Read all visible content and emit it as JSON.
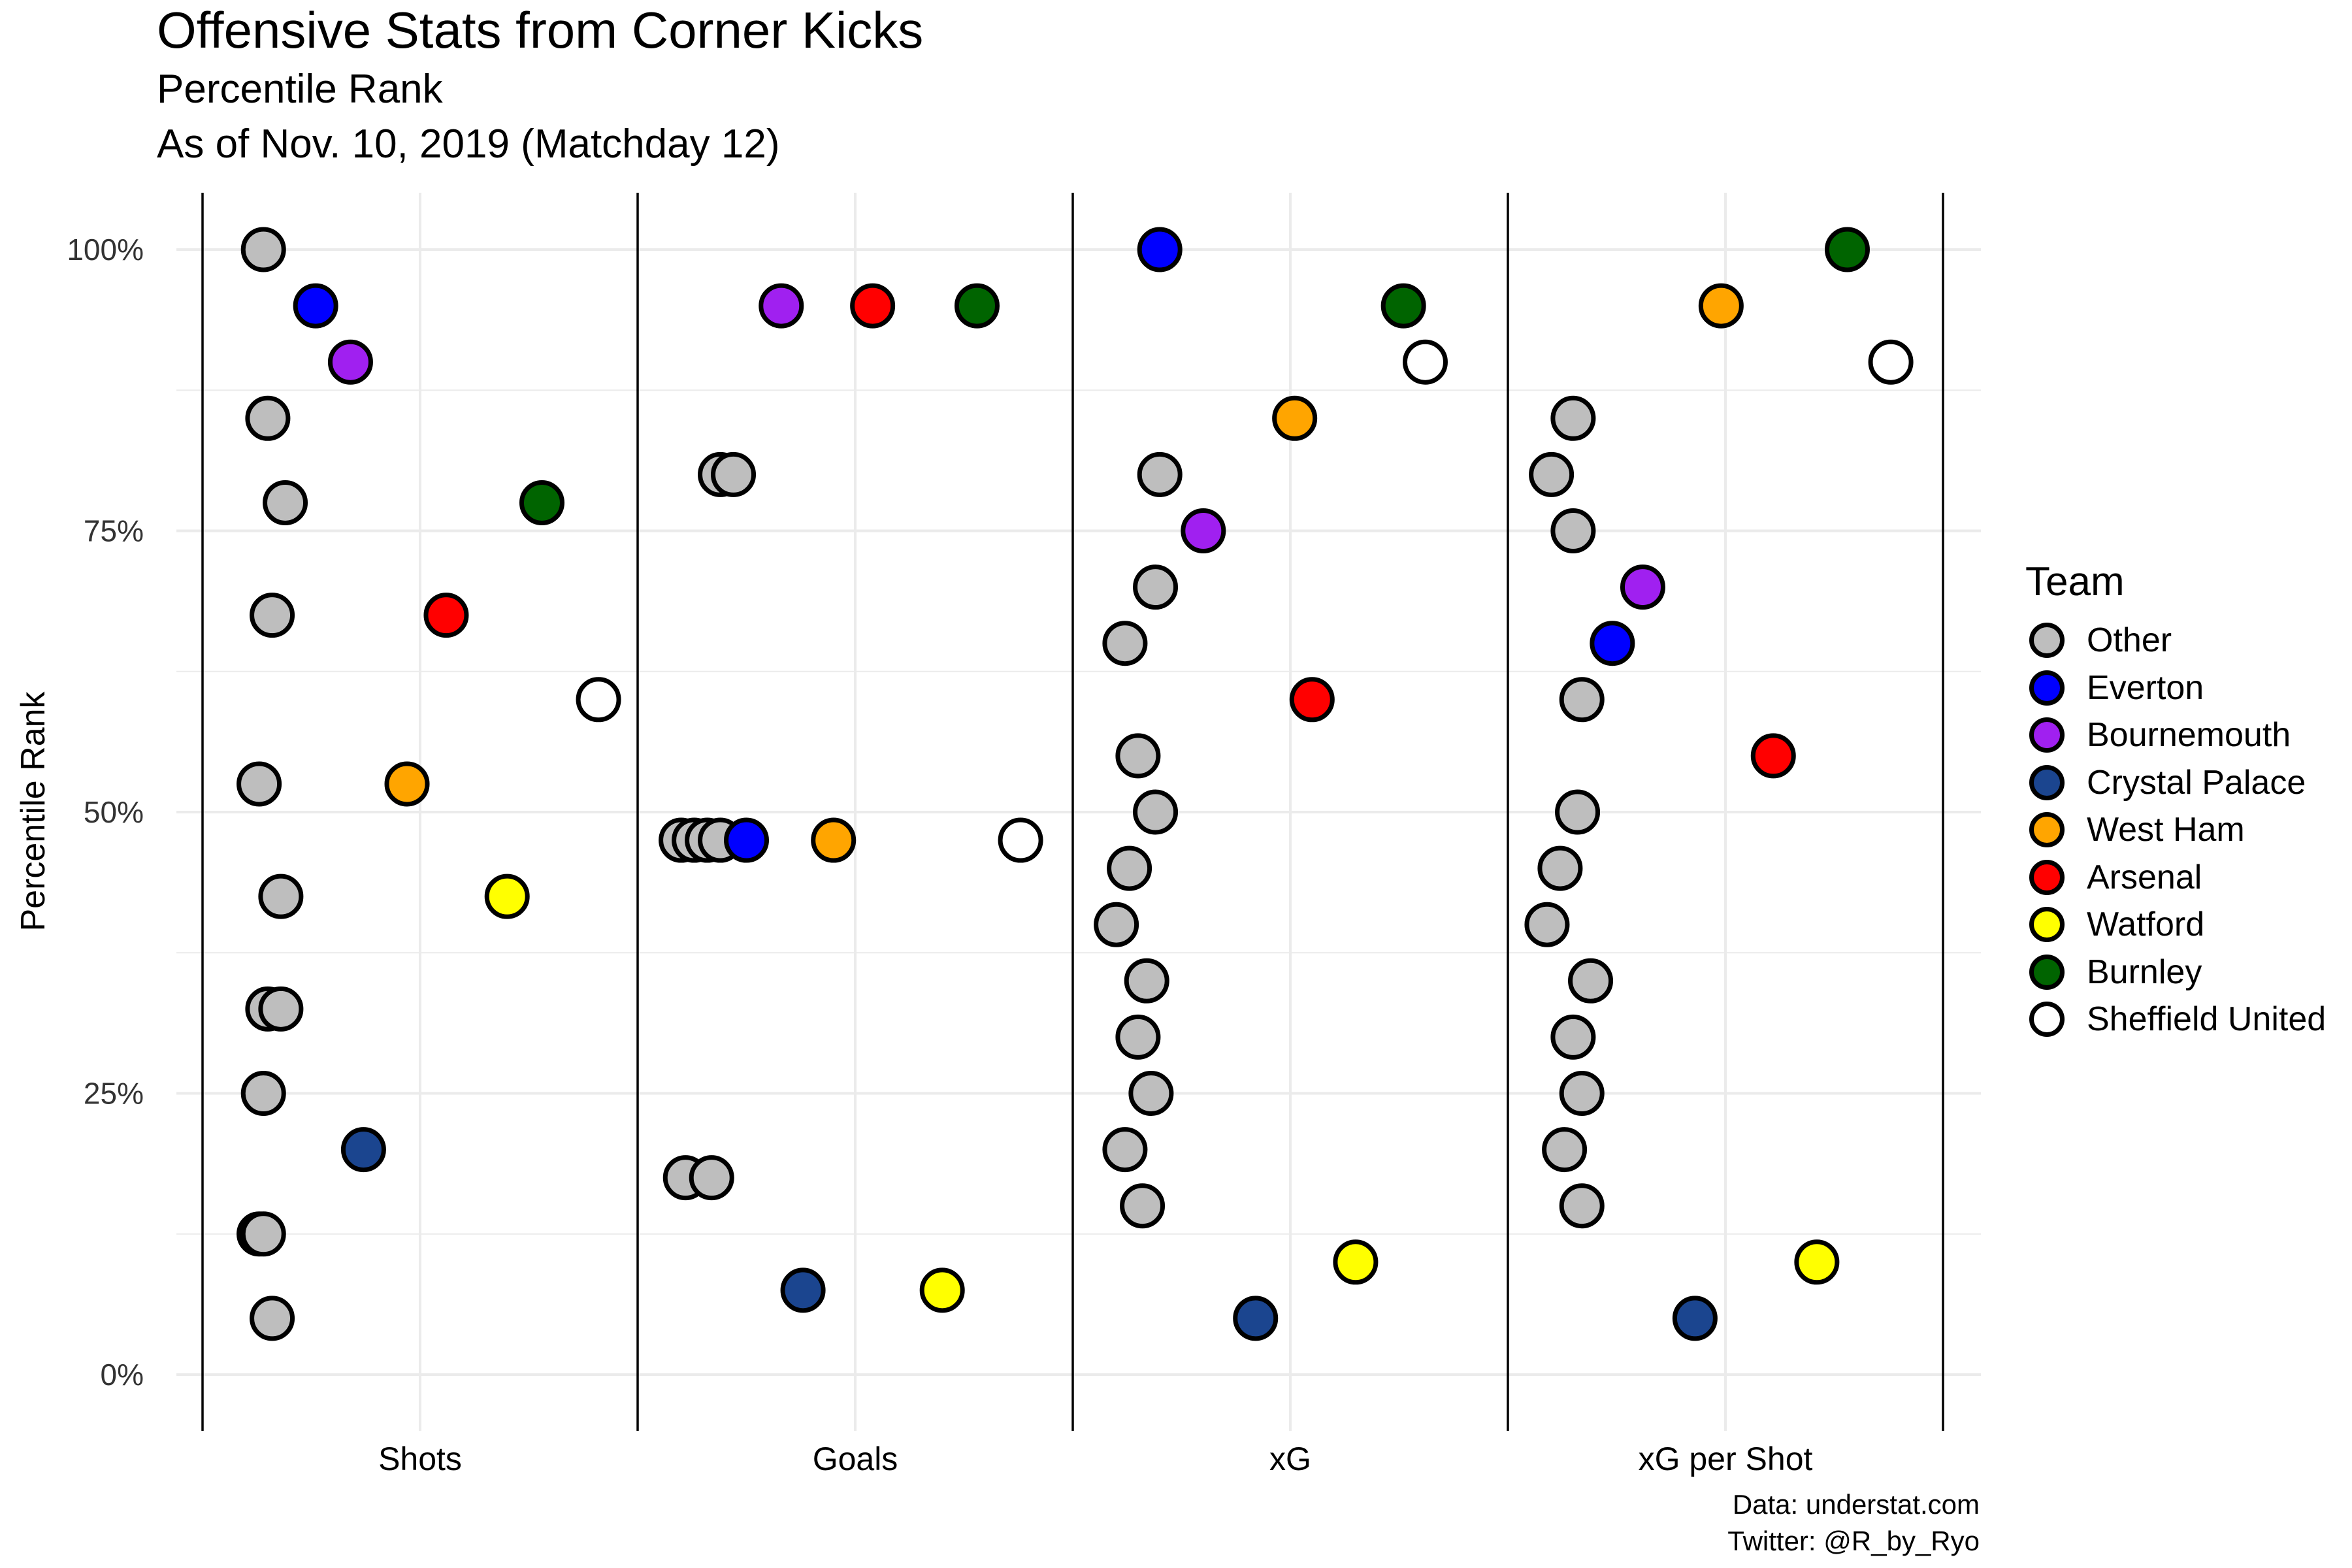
{
  "title": "Offensive Stats from Corner Kicks",
  "subtitle": "Percentile Rank",
  "subtitle2": "As of Nov. 10, 2019 (Matchday 12)",
  "caption_line1": "Data: understat.com",
  "caption_line2": "Twitter: @R_by_Ryo",
  "legend": {
    "title": "Team",
    "items": [
      {
        "label": "Other",
        "color": "#bebebe"
      },
      {
        "label": "Everton",
        "color": "#0000ff"
      },
      {
        "label": "Bournemouth",
        "color": "#a020f0"
      },
      {
        "label": "Crystal Palace",
        "color": "#1b458f"
      },
      {
        "label": "West Ham",
        "color": "#ffa500"
      },
      {
        "label": "Arsenal",
        "color": "#ff0000"
      },
      {
        "label": "Watford",
        "color": "#ffff00"
      },
      {
        "label": "Burnley",
        "color": "#006400"
      },
      {
        "label": "Sheffield United",
        "color": "#ffffff"
      }
    ]
  },
  "chart_data": {
    "type": "scatter",
    "ylabel": "Percentile Rank",
    "xlabel": "",
    "ylim": [
      0,
      100
    ],
    "yticks": [
      "0%",
      "25%",
      "50%",
      "75%",
      "100%"
    ],
    "yticks_values": [
      0,
      25,
      50,
      75,
      100
    ],
    "categories": [
      "Shots",
      "Goals",
      "xG",
      "xG per Shot"
    ],
    "grid": true,
    "legend_position": "right",
    "series": [
      {
        "name": "Other",
        "color": "#bebebe",
        "points": [
          {
            "panel": "Shots",
            "offset": -0.36,
            "y": 100
          },
          {
            "panel": "Shots",
            "offset": -0.35,
            "y": 85
          },
          {
            "panel": "Shots",
            "offset": -0.31,
            "y": 77.5
          },
          {
            "panel": "Shots",
            "offset": -0.34,
            "y": 67.5
          },
          {
            "panel": "Shots",
            "offset": -0.37,
            "y": 52.5
          },
          {
            "panel": "Shots",
            "offset": -0.32,
            "y": 42.5
          },
          {
            "panel": "Shots",
            "offset": -0.35,
            "y": 32.5
          },
          {
            "panel": "Shots",
            "offset": -0.32,
            "y": 32.5
          },
          {
            "panel": "Shots",
            "offset": -0.36,
            "y": 25
          },
          {
            "panel": "Shots",
            "offset": -0.37,
            "y": 12.5
          },
          {
            "panel": "Shots",
            "offset": -0.36,
            "y": 12.5
          },
          {
            "panel": "Shots",
            "offset": -0.34,
            "y": 5
          },
          {
            "panel": "Goals",
            "offset": -0.31,
            "y": 80
          },
          {
            "panel": "Goals",
            "offset": -0.28,
            "y": 80
          },
          {
            "panel": "Goals",
            "offset": -0.4,
            "y": 47.5
          },
          {
            "panel": "Goals",
            "offset": -0.37,
            "y": 47.5
          },
          {
            "panel": "Goals",
            "offset": -0.34,
            "y": 47.5
          },
          {
            "panel": "Goals",
            "offset": -0.31,
            "y": 47.5
          },
          {
            "panel": "Goals",
            "offset": -0.39,
            "y": 17.5
          },
          {
            "panel": "Goals",
            "offset": -0.33,
            "y": 17.5
          },
          {
            "panel": "xG",
            "offset": -0.3,
            "y": 80
          },
          {
            "panel": "xG",
            "offset": -0.31,
            "y": 70
          },
          {
            "panel": "xG",
            "offset": -0.38,
            "y": 65
          },
          {
            "panel": "xG",
            "offset": -0.35,
            "y": 55
          },
          {
            "panel": "xG",
            "offset": -0.31,
            "y": 50
          },
          {
            "panel": "xG",
            "offset": -0.37,
            "y": 45
          },
          {
            "panel": "xG",
            "offset": -0.4,
            "y": 40
          },
          {
            "panel": "xG",
            "offset": -0.33,
            "y": 35
          },
          {
            "panel": "xG",
            "offset": -0.35,
            "y": 30
          },
          {
            "panel": "xG",
            "offset": -0.32,
            "y": 25
          },
          {
            "panel": "xG",
            "offset": -0.38,
            "y": 20
          },
          {
            "panel": "xG",
            "offset": -0.34,
            "y": 15
          },
          {
            "panel": "xG per Shot",
            "offset": -0.35,
            "y": 85
          },
          {
            "panel": "xG per Shot",
            "offset": -0.4,
            "y": 80
          },
          {
            "panel": "xG per Shot",
            "offset": -0.35,
            "y": 75
          },
          {
            "panel": "xG per Shot",
            "offset": -0.33,
            "y": 60
          },
          {
            "panel": "xG per Shot",
            "offset": -0.34,
            "y": 50
          },
          {
            "panel": "xG per Shot",
            "offset": -0.38,
            "y": 45
          },
          {
            "panel": "xG per Shot",
            "offset": -0.41,
            "y": 40
          },
          {
            "panel": "xG per Shot",
            "offset": -0.31,
            "y": 35
          },
          {
            "panel": "xG per Shot",
            "offset": -0.35,
            "y": 30
          },
          {
            "panel": "xG per Shot",
            "offset": -0.33,
            "y": 25
          },
          {
            "panel": "xG per Shot",
            "offset": -0.37,
            "y": 20
          },
          {
            "panel": "xG per Shot",
            "offset": -0.33,
            "y": 15
          }
        ]
      },
      {
        "name": "Everton",
        "color": "#0000ff",
        "points": [
          {
            "panel": "Shots",
            "offset": -0.24,
            "y": 95
          },
          {
            "panel": "Goals",
            "offset": -0.25,
            "y": 47.5
          },
          {
            "panel": "xG",
            "offset": -0.3,
            "y": 100
          },
          {
            "panel": "xG per Shot",
            "offset": -0.26,
            "y": 65
          }
        ]
      },
      {
        "name": "Bournemouth",
        "color": "#a020f0",
        "points": [
          {
            "panel": "Shots",
            "offset": -0.16,
            "y": 90
          },
          {
            "panel": "Goals",
            "offset": -0.17,
            "y": 95
          },
          {
            "panel": "xG",
            "offset": -0.2,
            "y": 75
          },
          {
            "panel": "xG per Shot",
            "offset": -0.19,
            "y": 70
          }
        ]
      },
      {
        "name": "Crystal Palace",
        "color": "#1b458f",
        "points": [
          {
            "panel": "Shots",
            "offset": -0.13,
            "y": 20
          },
          {
            "panel": "Goals",
            "offset": -0.12,
            "y": 7.5
          },
          {
            "panel": "xG",
            "offset": -0.08,
            "y": 5
          },
          {
            "panel": "xG per Shot",
            "offset": -0.07,
            "y": 5
          }
        ]
      },
      {
        "name": "West Ham",
        "color": "#ffa500",
        "points": [
          {
            "panel": "Shots",
            "offset": -0.03,
            "y": 52.5
          },
          {
            "panel": "Goals",
            "offset": -0.05,
            "y": 47.5
          },
          {
            "panel": "xG",
            "offset": 0.01,
            "y": 85
          },
          {
            "panel": "xG per Shot",
            "offset": -0.01,
            "y": 95
          }
        ]
      },
      {
        "name": "Arsenal",
        "color": "#ff0000",
        "points": [
          {
            "panel": "Shots",
            "offset": 0.06,
            "y": 67.5
          },
          {
            "panel": "Goals",
            "offset": 0.04,
            "y": 95
          },
          {
            "panel": "xG",
            "offset": 0.05,
            "y": 60
          },
          {
            "panel": "xG per Shot",
            "offset": 0.11,
            "y": 55
          }
        ]
      },
      {
        "name": "Watford",
        "color": "#ffff00",
        "points": [
          {
            "panel": "Shots",
            "offset": 0.2,
            "y": 42.5
          },
          {
            "panel": "Goals",
            "offset": 0.2,
            "y": 7.5
          },
          {
            "panel": "xG",
            "offset": 0.15,
            "y": 10
          },
          {
            "panel": "xG per Shot",
            "offset": 0.21,
            "y": 10
          }
        ]
      },
      {
        "name": "Burnley",
        "color": "#006400",
        "points": [
          {
            "panel": "Shots",
            "offset": 0.28,
            "y": 77.5
          },
          {
            "panel": "Goals",
            "offset": 0.28,
            "y": 95
          },
          {
            "panel": "xG",
            "offset": 0.26,
            "y": 95
          },
          {
            "panel": "xG per Shot",
            "offset": 0.28,
            "y": 100
          }
        ]
      },
      {
        "name": "Sheffield United",
        "color": "#ffffff",
        "points": [
          {
            "panel": "Shots",
            "offset": 0.41,
            "y": 60
          },
          {
            "panel": "Goals",
            "offset": 0.38,
            "y": 47.5
          },
          {
            "panel": "xG",
            "offset": 0.31,
            "y": 90
          },
          {
            "panel": "xG per Shot",
            "offset": 0.38,
            "y": 90
          }
        ]
      }
    ]
  }
}
